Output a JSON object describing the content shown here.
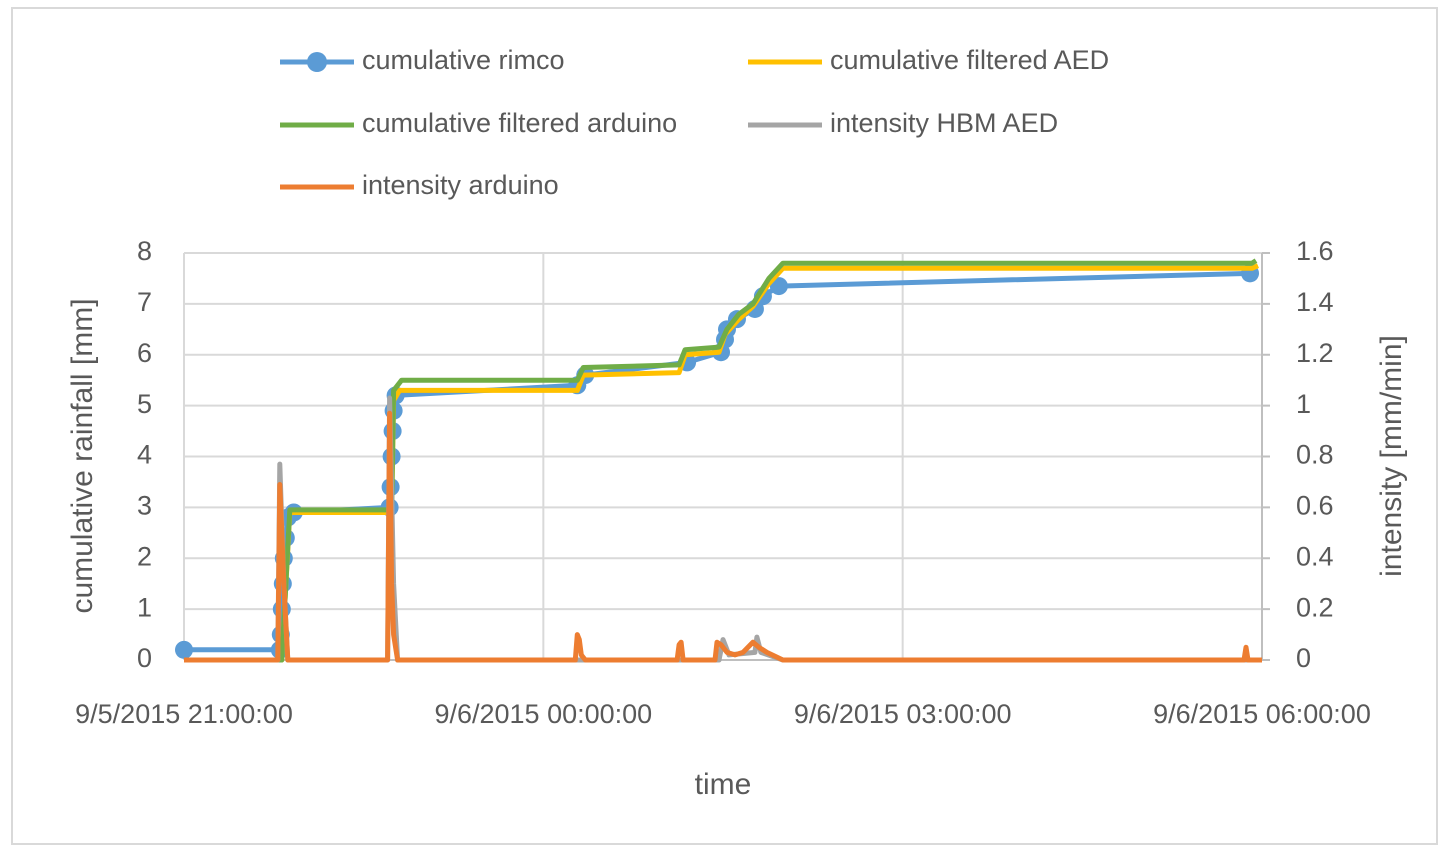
{
  "chart_data": {
    "type": "line",
    "x_label": "time",
    "y_label": "cumulative rainfall [mm]",
    "y2_label": "intensity [mm/min]",
    "xlim": [
      "9/5/2015 21:00:00",
      "9/6/2015 06:00:00"
    ],
    "xticks": [
      "9/5/2015 21:00:00",
      "9/6/2015 00:00:00",
      "9/6/2015 03:00:00",
      "9/6/2015 06:00:00"
    ],
    "ylim": [
      0,
      8
    ],
    "yticks": [
      0,
      1,
      2,
      3,
      4,
      5,
      6,
      7,
      8
    ],
    "y2lim": [
      0,
      1.6
    ],
    "y2ticks": [
      0,
      0.2,
      0.4,
      0.6,
      0.8,
      1,
      1.2,
      1.4,
      1.6
    ],
    "grid": true,
    "legend": "top",
    "series": [
      {
        "name": "cumulative rimco",
        "color": "#5b9bd5",
        "marker": true,
        "x": [
          "9/5/2015 21:00:00",
          "9/5/2015 21:48:00",
          "9/5/2015 21:48:30",
          "9/5/2015 21:49:00",
          "9/5/2015 21:49:30",
          "9/5/2015 21:50:00",
          "9/5/2015 21:51:00",
          "9/5/2015 21:52:00",
          "9/5/2015 21:55:00",
          "9/5/2015 22:43:00",
          "9/5/2015 22:43:30",
          "9/5/2015 22:44:00",
          "9/5/2015 22:44:30",
          "9/5/2015 22:45:00",
          "9/5/2015 22:46:00",
          "9/6/2015 00:17:00",
          "9/6/2015 00:21:00",
          "9/6/2015 01:12:00",
          "9/6/2015 01:29:00",
          "9/6/2015 01:31:00",
          "9/6/2015 01:32:00",
          "9/6/2015 01:37:00",
          "9/6/2015 01:46:00",
          "9/6/2015 01:50:00",
          "9/6/2015 01:58:00",
          "9/6/2015 05:54:00"
        ],
        "values": [
          0.2,
          0.2,
          0.5,
          1.0,
          1.5,
          2.0,
          2.4,
          2.8,
          2.9,
          3.0,
          3.4,
          4.0,
          4.5,
          4.9,
          5.2,
          5.4,
          5.6,
          5.85,
          6.05,
          6.3,
          6.5,
          6.7,
          6.9,
          7.15,
          7.35,
          7.6
        ]
      },
      {
        "name": "cumulative filtered AED",
        "color": "#ffc000",
        "x": [
          "9/5/2015 21:00:00",
          "9/5/2015 21:49:00",
          "9/5/2015 21:53:00",
          "9/5/2015 22:44:00",
          "9/5/2015 22:45:00",
          "9/5/2015 22:48:00",
          "9/6/2015 00:17:00",
          "9/6/2015 00:20:00",
          "9/6/2015 01:08:00",
          "9/6/2015 01:11:00",
          "9/6/2015 01:28:00",
          "9/6/2015 01:31:00",
          "9/6/2015 01:38:00",
          "9/6/2015 01:45:00",
          "9/6/2015 01:53:00",
          "9/6/2015 02:00:00",
          "9/6/2015 05:55:00",
          "9/6/2015 05:58:00"
        ],
        "values": [
          0,
          0,
          2.9,
          2.9,
          5.1,
          5.3,
          5.3,
          5.6,
          5.65,
          6.0,
          6.05,
          6.4,
          6.7,
          6.95,
          7.4,
          7.7,
          7.7,
          7.75
        ]
      },
      {
        "name": "cumulative filtered arduino",
        "color": "#70ad47",
        "x": [
          "9/5/2015 21:00:00",
          "9/5/2015 21:49:00",
          "9/5/2015 21:53:00",
          "9/5/2015 22:44:00",
          "9/5/2015 22:45:00",
          "9/5/2015 22:49:00",
          "9/6/2015 00:17:00",
          "9/6/2015 00:20:00",
          "9/6/2015 01:08:00",
          "9/6/2015 01:11:00",
          "9/6/2015 01:28:00",
          "9/6/2015 01:32:00",
          "9/6/2015 01:38:00",
          "9/6/2015 01:45:00",
          "9/6/2015 01:53:00",
          "9/6/2015 02:00:00",
          "9/6/2015 05:55:00",
          "9/6/2015 05:57:00"
        ],
        "values": [
          0,
          0,
          2.95,
          2.95,
          5.3,
          5.5,
          5.5,
          5.75,
          5.8,
          6.1,
          6.15,
          6.5,
          6.8,
          7.0,
          7.5,
          7.8,
          7.8,
          7.85
        ]
      },
      {
        "name": "intensity HBM AED",
        "color": "#a5a5a5",
        "axis": "y2",
        "x": [
          "9/5/2015 21:00:00",
          "9/5/2015 21:47:00",
          "9/5/2015 21:48:00",
          "9/5/2015 21:50:00",
          "9/5/2015 21:52:00",
          "9/5/2015 22:42:00",
          "9/5/2015 22:43:00",
          "9/5/2015 22:45:00",
          "9/5/2015 22:47:00",
          "9/6/2015 01:28:00",
          "9/6/2015 01:30:00",
          "9/6/2015 01:33:00",
          "9/6/2015 01:46:00",
          "9/6/2015 01:47:00",
          "9/6/2015 01:49:00",
          "9/6/2015 02:00:00",
          "9/6/2015 06:00:00"
        ],
        "values": [
          0,
          0,
          0.77,
          0.3,
          0,
          0,
          1.03,
          0.3,
          0,
          0,
          0.08,
          0.02,
          0.03,
          0.09,
          0.03,
          0,
          0
        ]
      },
      {
        "name": "intensity arduino",
        "color": "#ed7d31",
        "axis": "y2",
        "x": [
          "9/5/2015 21:00:00",
          "9/5/2015 21:47:00",
          "9/5/2015 21:48:00",
          "9/5/2015 21:50:00",
          "9/5/2015 21:52:00",
          "9/5/2015 22:42:00",
          "9/5/2015 22:43:00",
          "9/5/2015 22:44:00",
          "9/5/2015 22:45:00",
          "9/5/2015 22:47:00",
          "9/6/2015 00:16:00",
          "9/6/2015 00:17:00",
          "9/6/2015 00:18:00",
          "9/6/2015 00:19:00",
          "9/6/2015 00:21:00",
          "9/6/2015 01:07:00",
          "9/6/2015 01:08:00",
          "9/6/2015 01:09:00",
          "9/6/2015 01:10:00",
          "9/6/2015 01:26:00",
          "9/6/2015 01:27:00",
          "9/6/2015 01:29:00",
          "9/6/2015 01:32:00",
          "9/6/2015 01:36:00",
          "9/6/2015 01:40:00",
          "9/6/2015 01:45:00",
          "9/6/2015 01:48:00",
          "9/6/2015 01:52:00",
          "9/6/2015 02:00:00",
          "9/6/2015 05:51:00",
          "9/6/2015 05:52:00",
          "9/6/2015 05:53:00",
          "9/6/2015 06:00:00"
        ],
        "values": [
          0,
          0,
          0.69,
          0.3,
          0,
          0,
          0.97,
          0.3,
          0.1,
          0,
          0,
          0.1,
          0.08,
          0.02,
          0,
          0,
          0.06,
          0.07,
          0,
          0,
          0.07,
          0.06,
          0.03,
          0.02,
          0.03,
          0.07,
          0.05,
          0.03,
          0,
          0,
          0.05,
          0,
          0
        ]
      }
    ]
  }
}
